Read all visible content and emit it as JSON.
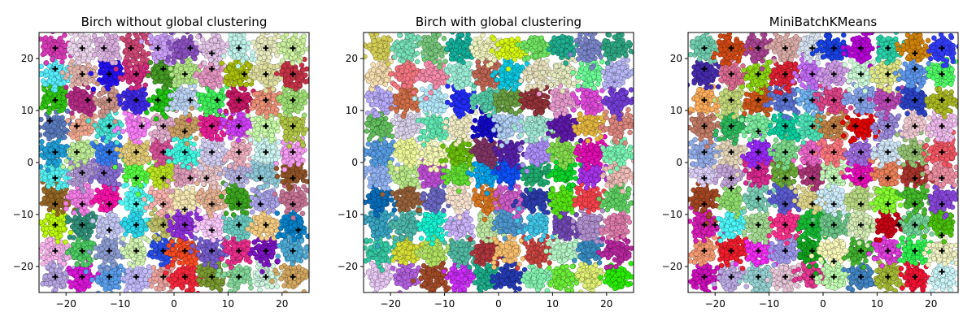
{
  "chart_data": [
    {
      "type": "scatter",
      "title": "Birch without global clustering",
      "xlabel": "",
      "ylabel": "",
      "xlim": [
        -25,
        25
      ],
      "ylim": [
        -25,
        25
      ],
      "xticks": [
        -20,
        -10,
        0,
        10,
        20
      ],
      "yticks": [
        -20,
        -10,
        0,
        10,
        20
      ],
      "grid": false,
      "legend": "none",
      "cluster_grid_centers": [
        -22,
        -17,
        -12,
        -7,
        -2,
        2,
        7,
        12,
        17,
        22
      ],
      "points_per_blob": 100,
      "blob_std": 1.2,
      "marker_centers": [
        [
          -22,
          22
        ],
        [
          -17,
          22
        ],
        [
          -13,
          22
        ],
        [
          -8,
          22
        ],
        [
          -3,
          22
        ],
        [
          3,
          22
        ],
        [
          7,
          21
        ],
        [
          12,
          22
        ],
        [
          17,
          22
        ],
        [
          22,
          22
        ],
        [
          -22,
          18
        ],
        [
          -17,
          17
        ],
        [
          -12,
          17
        ],
        [
          -7,
          17
        ],
        [
          -2,
          18
        ],
        [
          2,
          17
        ],
        [
          7,
          18
        ],
        [
          13,
          17
        ],
        [
          17,
          17
        ],
        [
          22,
          17
        ],
        [
          -22,
          12
        ],
        [
          -16,
          12
        ],
        [
          -12,
          12
        ],
        [
          -7,
          12
        ],
        [
          -3,
          12
        ],
        [
          3,
          12
        ],
        [
          8,
          12
        ],
        [
          12,
          12
        ],
        [
          17,
          12
        ],
        [
          22,
          12
        ],
        [
          -23,
          8
        ],
        [
          -18,
          7
        ],
        [
          -12,
          7
        ],
        [
          -6,
          7
        ],
        [
          -2,
          7
        ],
        [
          2,
          6
        ],
        [
          7,
          7
        ],
        [
          12,
          7
        ],
        [
          17,
          7
        ],
        [
          22,
          7
        ],
        [
          -22,
          2
        ],
        [
          -18,
          2
        ],
        [
          -12,
          2
        ],
        [
          -7,
          2
        ],
        [
          -2,
          2
        ],
        [
          2,
          2
        ],
        [
          7,
          2
        ],
        [
          12,
          2
        ],
        [
          17,
          2
        ],
        [
          22,
          2
        ],
        [
          -22,
          -3
        ],
        [
          -17,
          -2
        ],
        [
          -13,
          -2
        ],
        [
          -7,
          -3
        ],
        [
          -2,
          -3
        ],
        [
          3,
          -3
        ],
        [
          6,
          -3
        ],
        [
          12,
          -3
        ],
        [
          16,
          -3
        ],
        [
          22,
          -3
        ],
        [
          -22,
          -8
        ],
        [
          -17,
          -8
        ],
        [
          -12,
          -8
        ],
        [
          -7,
          -8
        ],
        [
          -2,
          -8
        ],
        [
          2,
          -9
        ],
        [
          7,
          -8
        ],
        [
          12,
          -8
        ],
        [
          16,
          -8
        ],
        [
          22,
          -8
        ],
        [
          -22,
          -12
        ],
        [
          -17,
          -12
        ],
        [
          -12,
          -13
        ],
        [
          -7,
          -12
        ],
        [
          -2,
          -12
        ],
        [
          2,
          -12
        ],
        [
          7,
          -13
        ],
        [
          12,
          -12
        ],
        [
          17,
          -12
        ],
        [
          23,
          -13
        ],
        [
          -22,
          -17
        ],
        [
          -17,
          -17
        ],
        [
          -12,
          -17
        ],
        [
          -7,
          -17
        ],
        [
          -2,
          -17
        ],
        [
          2,
          -17
        ],
        [
          7,
          -17
        ],
        [
          12,
          -17
        ],
        [
          17,
          -17
        ],
        [
          22,
          -17
        ],
        [
          -22,
          -22
        ],
        [
          -17,
          -22
        ],
        [
          -12,
          -22
        ],
        [
          -7,
          -22
        ],
        [
          -2,
          -22
        ],
        [
          2,
          -22
        ],
        [
          7,
          -22
        ],
        [
          12,
          -22
        ],
        [
          17,
          -22
        ],
        [
          22,
          -22
        ]
      ]
    },
    {
      "type": "scatter",
      "title": "Birch with global clustering",
      "xlabel": "",
      "ylabel": "",
      "xlim": [
        -25,
        25
      ],
      "ylim": [
        -25,
        25
      ],
      "xticks": [
        -20,
        -10,
        0,
        10,
        20
      ],
      "yticks": [
        -20,
        -10,
        0,
        10,
        20
      ],
      "grid": false,
      "legend": "none",
      "cluster_grid_centers": [
        -22,
        -17,
        -12,
        -7,
        -2,
        2,
        7,
        12,
        17,
        22
      ],
      "points_per_blob": 100,
      "blob_std": 1.2,
      "marker_centers": []
    },
    {
      "type": "scatter",
      "title": "MiniBatchKMeans",
      "xlabel": "",
      "ylabel": "",
      "xlim": [
        -25,
        25
      ],
      "ylim": [
        -25,
        25
      ],
      "xticks": [
        -20,
        -10,
        0,
        10,
        20
      ],
      "yticks": [
        -20,
        -10,
        0,
        10,
        20
      ],
      "grid": false,
      "legend": "none",
      "cluster_grid_centers": [
        -22,
        -17,
        -12,
        -7,
        -2,
        2,
        7,
        12,
        17,
        22
      ],
      "points_per_blob": 100,
      "blob_std": 1.2,
      "marker_centers": [
        [
          -22,
          22
        ],
        [
          -17,
          22
        ],
        [
          -12,
          22
        ],
        [
          -7,
          22
        ],
        [
          -2,
          22
        ],
        [
          2,
          22
        ],
        [
          7,
          22
        ],
        [
          12,
          22
        ],
        [
          17,
          21
        ],
        [
          22,
          22
        ],
        [
          -22,
          18
        ],
        [
          -17,
          17
        ],
        [
          -12,
          17
        ],
        [
          -7,
          17
        ],
        [
          -2,
          17
        ],
        [
          2,
          17
        ],
        [
          7,
          17
        ],
        [
          12,
          17
        ],
        [
          17,
          18
        ],
        [
          22,
          17
        ],
        [
          -22,
          12
        ],
        [
          -17,
          12
        ],
        [
          -12,
          12
        ],
        [
          -7,
          12
        ],
        [
          -2,
          12
        ],
        [
          2,
          12
        ],
        [
          7,
          12
        ],
        [
          12,
          12
        ],
        [
          17,
          12
        ],
        [
          22,
          12
        ],
        [
          -22,
          7
        ],
        [
          -17,
          7
        ],
        [
          -12,
          6
        ],
        [
          -7,
          7
        ],
        [
          -2,
          7
        ],
        [
          2,
          7
        ],
        [
          6,
          7
        ],
        [
          12,
          7
        ],
        [
          17,
          7
        ],
        [
          22,
          7
        ],
        [
          -22,
          2
        ],
        [
          -17,
          2
        ],
        [
          -12,
          2
        ],
        [
          -7,
          2
        ],
        [
          -2,
          2
        ],
        [
          2,
          2
        ],
        [
          7,
          2
        ],
        [
          12,
          2
        ],
        [
          17,
          2
        ],
        [
          22,
          2
        ],
        [
          -22,
          -3
        ],
        [
          -17,
          -3
        ],
        [
          -12,
          -1
        ],
        [
          -7,
          -3
        ],
        [
          -2,
          -3
        ],
        [
          2,
          -3
        ],
        [
          7,
          -3
        ],
        [
          12,
          -3
        ],
        [
          17,
          -3
        ],
        [
          22,
          -3
        ],
        [
          -22,
          -8
        ],
        [
          -17,
          -5
        ],
        [
          -12,
          -7
        ],
        [
          -7,
          -8
        ],
        [
          -2,
          -8
        ],
        [
          2,
          -8
        ],
        [
          7,
          -8
        ],
        [
          12,
          -8
        ],
        [
          17,
          -8
        ],
        [
          22,
          -8
        ],
        [
          -22,
          -12
        ],
        [
          -20,
          -12
        ],
        [
          -12,
          -12
        ],
        [
          -7,
          -12
        ],
        [
          -2,
          -12
        ],
        [
          2,
          -12
        ],
        [
          7,
          -12
        ],
        [
          14,
          -12
        ],
        [
          17,
          -12
        ],
        [
          22,
          -14
        ],
        [
          -22,
          -17
        ],
        [
          -17,
          -17
        ],
        [
          -12,
          -17
        ],
        [
          -7,
          -17
        ],
        [
          -2,
          -17
        ],
        [
          2,
          -19
        ],
        [
          7,
          -17
        ],
        [
          12,
          -17
        ],
        [
          17,
          -17
        ],
        [
          22,
          -17
        ],
        [
          -22,
          -22
        ],
        [
          -17,
          -22
        ],
        [
          -12,
          -22
        ],
        [
          -7,
          -22
        ],
        [
          -2,
          -22
        ],
        [
          2,
          -22
        ],
        [
          7,
          -22
        ],
        [
          12,
          -22
        ],
        [
          17,
          -22
        ],
        [
          22,
          -21
        ]
      ]
    }
  ]
}
